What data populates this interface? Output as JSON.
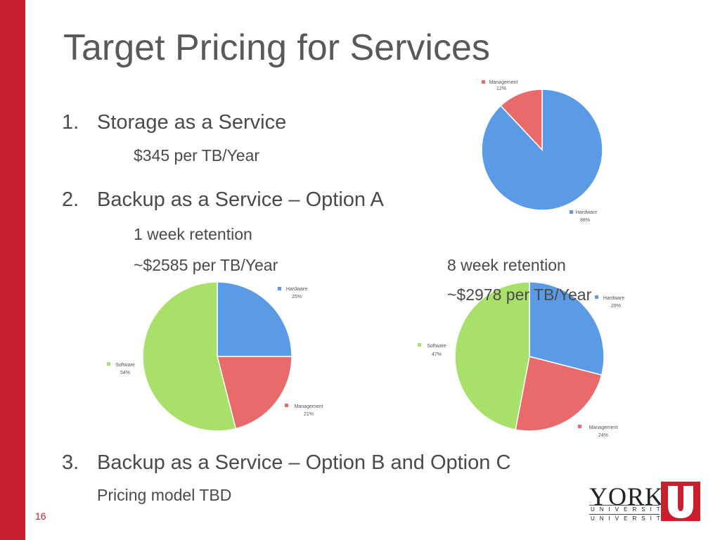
{
  "slide": {
    "title": "Target Pricing for Services",
    "slide_number": "16",
    "items": [
      {
        "num": "1.",
        "label": "Storage as a Service"
      },
      {
        "num": "2.",
        "label": "Backup as a Service – Option A"
      },
      {
        "num": "3.",
        "label": "Backup as a Service – Option B and Option C"
      }
    ],
    "storage_price": "$345 per TB/Year",
    "optA_1w_retention": "1 week retention",
    "optA_1w_price": "~$2585 per TB/Year",
    "optA_8w_retention": "8 week retention",
    "optA_8w_price": "~$2978 per TB/Year",
    "optBC_note": "Pricing model TBD",
    "logo": {
      "word": "YORK",
      "line1": "UNIVERSITÉ",
      "line2": "UNIVERSITY"
    },
    "colors": {
      "accent_red": "#c8202f",
      "hardware": "#5b9be6",
      "management": "#e86a6a",
      "software": "#a9e06a"
    }
  },
  "chart_data": [
    {
      "type": "pie",
      "slices": [
        {
          "label": "Hardware",
          "value": 88,
          "display": "88%",
          "color": "#5b9be6"
        },
        {
          "label": "Management",
          "value": 12,
          "display": "12%",
          "color": "#e86a6a"
        }
      ]
    },
    {
      "type": "pie",
      "slices": [
        {
          "label": "Hardware",
          "value": 25,
          "display": "25%",
          "color": "#5b9be6"
        },
        {
          "label": "Management",
          "value": 21,
          "display": "21%",
          "color": "#e86a6a"
        },
        {
          "label": "Software",
          "value": 54,
          "display": "54%",
          "color": "#a9e06a"
        }
      ]
    },
    {
      "type": "pie",
      "slices": [
        {
          "label": "Hardware",
          "value": 29,
          "display": "29%",
          "color": "#5b9be6"
        },
        {
          "label": "Management",
          "value": 24,
          "display": "24%",
          "color": "#e86a6a"
        },
        {
          "label": "Software",
          "value": 47,
          "display": "47%",
          "color": "#a9e06a"
        }
      ]
    }
  ]
}
